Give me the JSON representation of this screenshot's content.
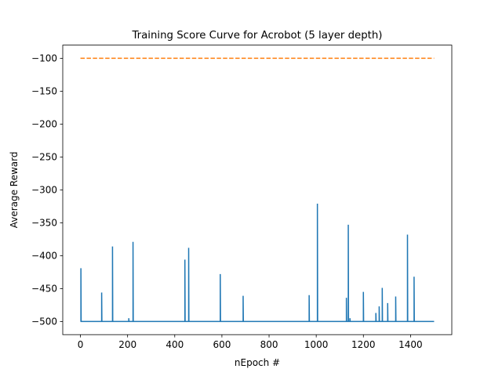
{
  "chart_data": {
    "type": "line",
    "title": "Training Score Curve for Acrobot (5 layer depth)",
    "xlabel": "nEpoch #",
    "ylabel": "Average Reward",
    "xlim": [
      -75,
      1575
    ],
    "ylim": [
      -520,
      -80
    ],
    "xticks": [
      0,
      200,
      400,
      600,
      800,
      1000,
      1200,
      1400
    ],
    "yticks": [
      -500,
      -450,
      -400,
      -350,
      -300,
      -250,
      -200,
      -150,
      -100
    ],
    "grid": false,
    "series": [
      {
        "style": "solid",
        "color": "#1f77b4",
        "baseline": -500,
        "x_range": [
          0,
          1500
        ],
        "spikes": [
          {
            "x": 2,
            "y": -419
          },
          {
            "x": 90,
            "y": -456
          },
          {
            "x": 136,
            "y": -386
          },
          {
            "x": 205,
            "y": -495
          },
          {
            "x": 223,
            "y": -379
          },
          {
            "x": 443,
            "y": -406
          },
          {
            "x": 459,
            "y": -388
          },
          {
            "x": 593,
            "y": -428
          },
          {
            "x": 690,
            "y": -461
          },
          {
            "x": 970,
            "y": -460
          },
          {
            "x": 1005,
            "y": -321
          },
          {
            "x": 1128,
            "y": -464
          },
          {
            "x": 1136,
            "y": -353
          },
          {
            "x": 1143,
            "y": -495
          },
          {
            "x": 1200,
            "y": -455
          },
          {
            "x": 1253,
            "y": -487
          },
          {
            "x": 1267,
            "y": -477
          },
          {
            "x": 1280,
            "y": -449
          },
          {
            "x": 1303,
            "y": -472
          },
          {
            "x": 1337,
            "y": -462
          },
          {
            "x": 1387,
            "y": -368
          },
          {
            "x": 1415,
            "y": -432
          }
        ]
      },
      {
        "style": "dashed",
        "color": "#ff7f0e",
        "x": [
          0,
          1500
        ],
        "y": [
          -100,
          -100
        ]
      }
    ]
  }
}
